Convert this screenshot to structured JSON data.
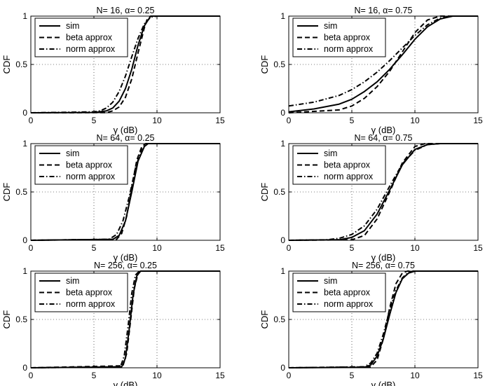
{
  "figure": {
    "x_ticks": [
      "0",
      "5",
      "10",
      "15"
    ],
    "y_ticks": [
      "0",
      "0.5",
      "1"
    ],
    "legend": [
      "sim",
      "beta approx",
      "norm approx"
    ]
  },
  "chart_data": [
    {
      "type": "line",
      "title": "N= 16, α= 0.25",
      "xlabel": "γ (dB)",
      "ylabel": "CDF",
      "xlim": [
        0,
        15
      ],
      "ylim": [
        0,
        1
      ],
      "grid": true,
      "legend_position": "top-left",
      "series": [
        {
          "name": "sim",
          "style": "solid",
          "x": [
            0,
            5,
            6,
            6.5,
            7,
            7.5,
            8,
            8.5,
            9,
            9.5,
            10,
            15
          ],
          "y": [
            0,
            0.003,
            0.02,
            0.05,
            0.12,
            0.25,
            0.45,
            0.7,
            0.9,
            1,
            1,
            1
          ]
        },
        {
          "name": "beta approx",
          "style": "dashed",
          "x": [
            0,
            6,
            6.5,
            7,
            7.5,
            8,
            8.5,
            9,
            9.2,
            9.5,
            15
          ],
          "y": [
            0,
            0.002,
            0.02,
            0.06,
            0.16,
            0.35,
            0.62,
            0.88,
            0.96,
            1,
            1
          ]
        },
        {
          "name": "norm approx",
          "style": "dashdot",
          "x": [
            0,
            5,
            5.5,
            6,
            6.5,
            7,
            7.5,
            8,
            8.5,
            9,
            9.5,
            10,
            15
          ],
          "y": [
            0,
            0.01,
            0.02,
            0.05,
            0.11,
            0.22,
            0.38,
            0.58,
            0.77,
            0.92,
            0.99,
            1,
            1
          ]
        }
      ]
    },
    {
      "type": "line",
      "title": "N= 16, α= 0.75",
      "xlabel": "γ (dB)",
      "ylabel": "CDF",
      "xlim": [
        0,
        15
      ],
      "ylim": [
        0,
        1
      ],
      "grid": true,
      "legend_position": "top-left",
      "series": [
        {
          "name": "sim",
          "style": "solid",
          "x": [
            0,
            2,
            4,
            5,
            6,
            7,
            8,
            9,
            10,
            11,
            12,
            13,
            14,
            15
          ],
          "y": [
            0.01,
            0.04,
            0.09,
            0.14,
            0.22,
            0.32,
            0.45,
            0.6,
            0.76,
            0.89,
            0.97,
            1,
            1,
            1
          ]
        },
        {
          "name": "beta approx",
          "style": "dashed",
          "x": [
            0,
            4,
            5,
            6,
            7,
            8,
            9,
            10,
            11,
            12,
            12.5,
            15
          ],
          "y": [
            0,
            0.03,
            0.07,
            0.15,
            0.27,
            0.43,
            0.63,
            0.83,
            0.96,
            1,
            1,
            1
          ]
        },
        {
          "name": "norm approx",
          "style": "dashdot",
          "x": [
            0,
            2,
            4,
            5,
            6,
            7,
            8,
            9,
            10,
            11,
            12,
            13,
            15
          ],
          "y": [
            0.07,
            0.11,
            0.18,
            0.24,
            0.32,
            0.42,
            0.54,
            0.67,
            0.8,
            0.91,
            0.98,
            1,
            1
          ]
        }
      ]
    },
    {
      "type": "line",
      "title": "N= 64, α= 0.25",
      "xlabel": "γ (dB)",
      "ylabel": "CDF",
      "xlim": [
        0,
        15
      ],
      "ylim": [
        0,
        1
      ],
      "grid": true,
      "legend_position": "top-left",
      "series": [
        {
          "name": "sim",
          "style": "solid",
          "x": [
            0,
            6.5,
            7,
            7.5,
            8,
            8.5,
            9,
            9.3,
            15
          ],
          "y": [
            0,
            0.01,
            0.05,
            0.2,
            0.5,
            0.82,
            0.97,
            1,
            1
          ]
        },
        {
          "name": "beta approx",
          "style": "dashed",
          "x": [
            0,
            6.8,
            7.2,
            7.6,
            8,
            8.4,
            8.8,
            9.1,
            15
          ],
          "y": [
            0,
            0.01,
            0.07,
            0.25,
            0.55,
            0.83,
            0.97,
            1,
            1
          ]
        },
        {
          "name": "norm approx",
          "style": "dashdot",
          "x": [
            0,
            6.2,
            6.8,
            7.3,
            7.8,
            8.3,
            8.8,
            9.2,
            15
          ],
          "y": [
            0,
            0.01,
            0.06,
            0.2,
            0.45,
            0.75,
            0.95,
            1,
            1
          ]
        }
      ]
    },
    {
      "type": "line",
      "title": "N= 64, α= 0.75",
      "xlabel": "γ (dB)",
      "ylabel": "CDF",
      "xlim": [
        0,
        15
      ],
      "ylim": [
        0,
        1
      ],
      "grid": true,
      "legend_position": "top-left",
      "series": [
        {
          "name": "sim",
          "style": "solid",
          "x": [
            0,
            4,
            5,
            6,
            7,
            8,
            9,
            10,
            11,
            12,
            15
          ],
          "y": [
            0,
            0.005,
            0.03,
            0.1,
            0.27,
            0.52,
            0.78,
            0.94,
            0.99,
            1,
            1
          ]
        },
        {
          "name": "beta approx",
          "style": "dashed",
          "x": [
            0,
            5,
            6,
            7,
            8,
            9,
            10,
            10.8,
            11.5,
            15
          ],
          "y": [
            0,
            0.005,
            0.05,
            0.22,
            0.5,
            0.8,
            0.97,
            1,
            1,
            1
          ]
        },
        {
          "name": "norm approx",
          "style": "dashdot",
          "x": [
            0,
            3,
            4,
            5,
            6,
            7,
            8,
            9,
            10,
            11,
            12,
            15
          ],
          "y": [
            0,
            0.005,
            0.02,
            0.06,
            0.15,
            0.32,
            0.56,
            0.79,
            0.93,
            0.99,
            1,
            1
          ]
        }
      ]
    },
    {
      "type": "line",
      "title": "N= 256, α= 0.25",
      "xlabel": "γ (dB)",
      "ylabel": "CDF",
      "xlim": [
        0,
        15
      ],
      "ylim": [
        0,
        1
      ],
      "grid": true,
      "legend_position": "top-left",
      "series": [
        {
          "name": "sim",
          "style": "solid",
          "x": [
            0,
            7.2,
            7.5,
            7.8,
            8.1,
            8.4,
            8.7,
            15
          ],
          "y": [
            0,
            0.01,
            0.1,
            0.4,
            0.75,
            0.95,
            1,
            1
          ]
        },
        {
          "name": "beta approx",
          "style": "dashed",
          "x": [
            0,
            7.3,
            7.6,
            7.9,
            8.2,
            8.5,
            8.7,
            15
          ],
          "y": [
            0,
            0.02,
            0.15,
            0.48,
            0.82,
            0.98,
            1,
            1
          ]
        },
        {
          "name": "norm approx",
          "style": "dashdot",
          "x": [
            0,
            7.1,
            7.4,
            7.7,
            8,
            8.3,
            8.6,
            15
          ],
          "y": [
            0,
            0.01,
            0.12,
            0.42,
            0.77,
            0.96,
            1,
            1
          ]
        }
      ]
    },
    {
      "type": "line",
      "title": "N= 256, α= 0.75",
      "xlabel": "γ (dB)",
      "ylabel": "CDF",
      "xlim": [
        0,
        15
      ],
      "ylim": [
        0,
        1
      ],
      "grid": true,
      "legend_position": "top-left",
      "series": [
        {
          "name": "sim",
          "style": "solid",
          "x": [
            0,
            6,
            6.5,
            7,
            7.5,
            8,
            8.5,
            9,
            9.5,
            10,
            15
          ],
          "y": [
            0,
            0.005,
            0.03,
            0.12,
            0.3,
            0.55,
            0.78,
            0.92,
            0.98,
            1,
            1
          ]
        },
        {
          "name": "beta approx",
          "style": "dashed",
          "x": [
            0,
            6.5,
            7,
            7.5,
            8,
            8.5,
            9,
            9.4,
            15
          ],
          "y": [
            0,
            0.01,
            0.08,
            0.3,
            0.62,
            0.87,
            0.98,
            1,
            1
          ]
        },
        {
          "name": "norm approx",
          "style": "dashdot",
          "x": [
            0,
            6,
            6.5,
            7,
            7.5,
            8,
            8.5,
            9,
            9.5,
            10,
            15
          ],
          "y": [
            0,
            0.01,
            0.05,
            0.15,
            0.35,
            0.6,
            0.8,
            0.93,
            0.99,
            1,
            1
          ]
        }
      ]
    }
  ]
}
